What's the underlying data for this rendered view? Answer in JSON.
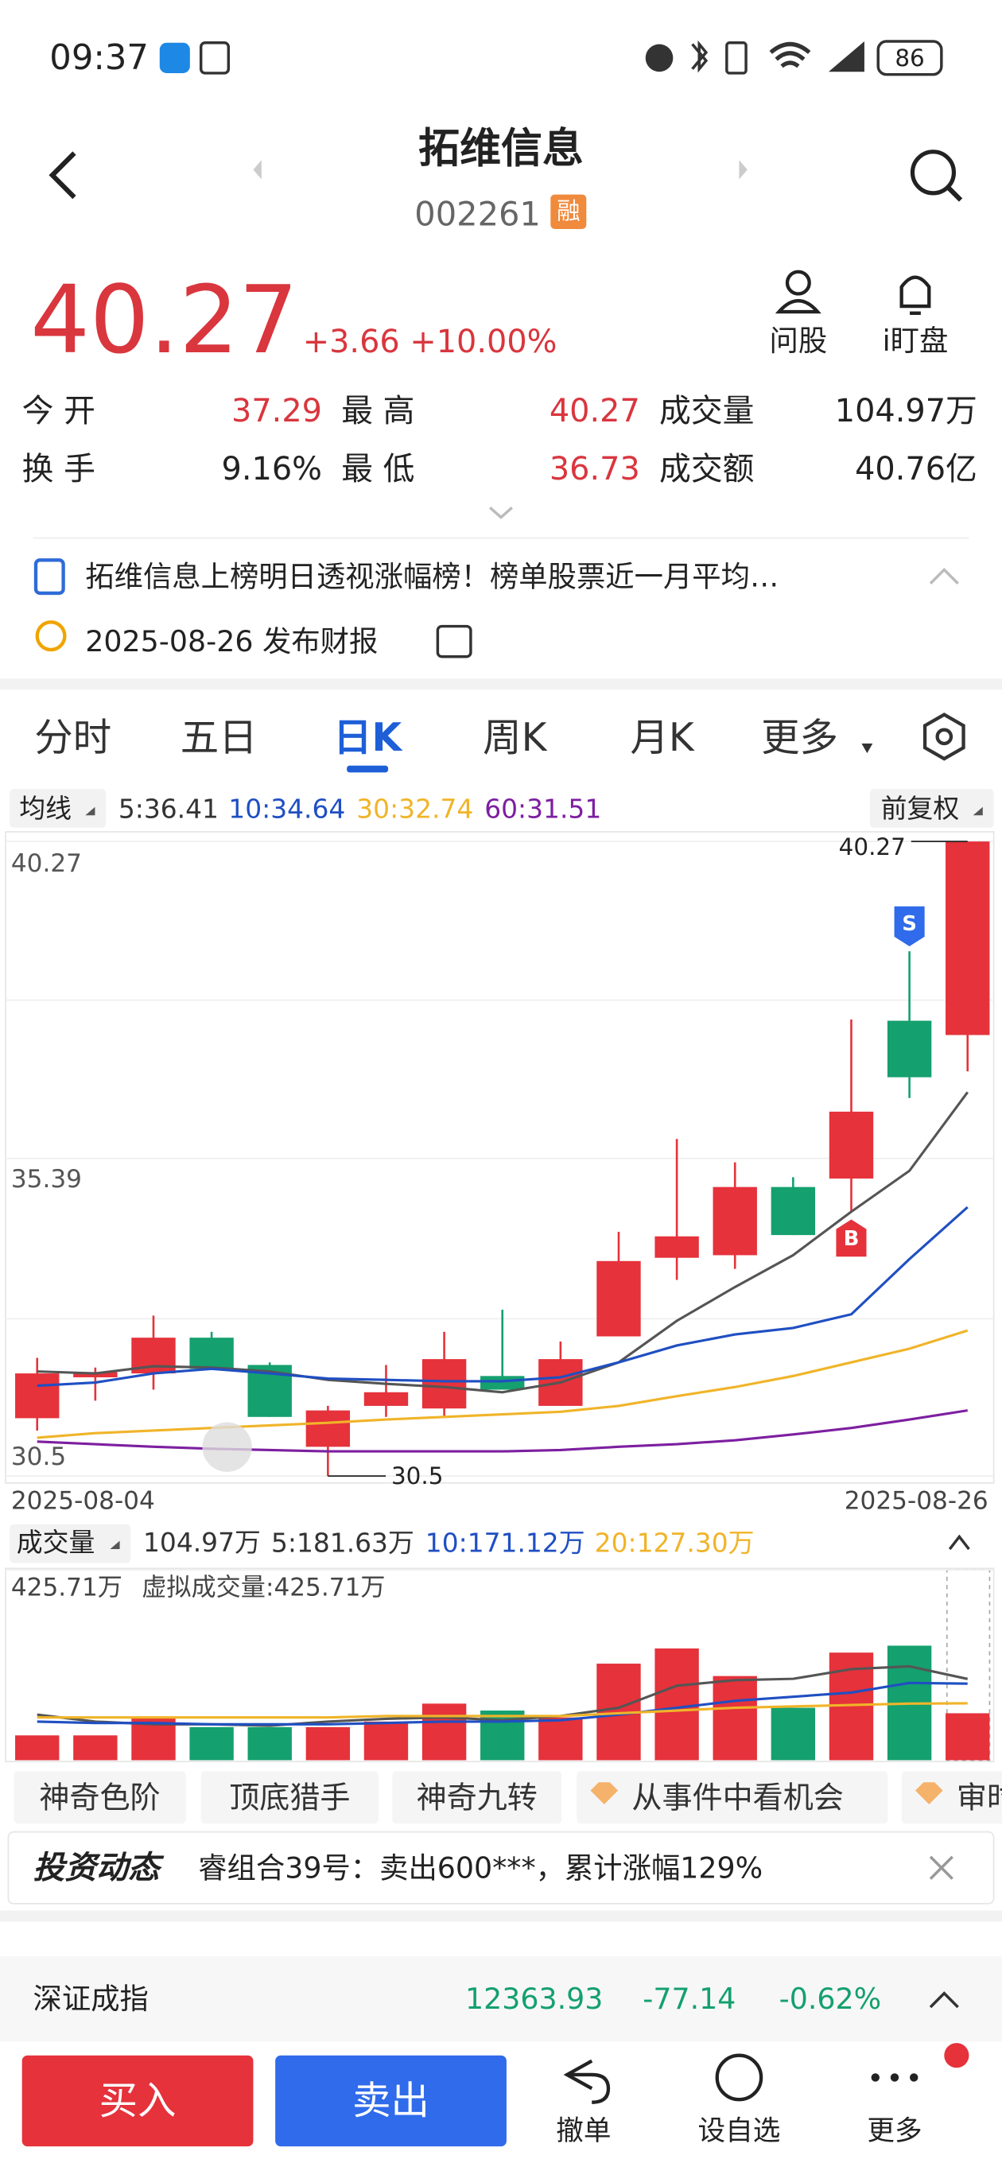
{
  "status_bar": {
    "time": "09:37",
    "battery": "86"
  },
  "header": {
    "title": "拓维信息",
    "code": "002261",
    "badge": "融"
  },
  "quote": {
    "price": "40.27",
    "change": "+3.66 +10.00%",
    "actions": [
      "问股",
      "i盯盘"
    ]
  },
  "stats": [
    [
      [
        "今 开",
        "37.29"
      ],
      [
        "最 高",
        "40.27"
      ],
      [
        "成交量",
        "104.97万"
      ]
    ],
    [
      [
        "换 手",
        "9.16%"
      ],
      [
        "最 低",
        "36.73"
      ],
      [
        "成交额",
        "40.76亿"
      ]
    ]
  ],
  "news": {
    "headline": "拓维信息上榜明日透视涨幅榜！榜单股票近一月平均…",
    "event": "2025-08-26 发布财报"
  },
  "tabs": [
    "分时",
    "五日",
    "日K",
    "周K",
    "月K",
    "更多"
  ],
  "chart_data": [
    {
      "type": "candlestick",
      "ma_button": "均线",
      "adjust_button": "前复权",
      "categories": [
        "2025-08-04",
        null,
        null,
        null,
        null,
        null,
        null,
        null,
        null,
        null,
        null,
        null,
        null,
        null,
        null,
        null,
        "2025-08-26"
      ],
      "candles": {
        "open": [
          31.39,
          32.02,
          32.08,
          32.63,
          32.21,
          30.95,
          31.58,
          31.54,
          32.04,
          31.58,
          32.65,
          33.86,
          33.9,
          34.95,
          35.08,
          37.51,
          37.29
        ],
        "high": [
          32.32,
          32.17,
          32.97,
          32.72,
          32.25,
          31.58,
          32.21,
          32.72,
          33.06,
          32.57,
          34.26,
          35.69,
          35.33,
          35.1,
          37.53,
          38.58,
          40.27
        ],
        "low": [
          31.2,
          31.66,
          31.83,
          32.15,
          31.41,
          30.5,
          31.41,
          31.41,
          31.83,
          31.58,
          32.65,
          33.52,
          33.69,
          34.21,
          34.57,
          36.32,
          36.73
        ],
        "close": [
          32.08,
          32.1,
          32.63,
          32.15,
          31.41,
          31.51,
          31.79,
          32.3,
          31.83,
          32.3,
          33.81,
          34.19,
          34.95,
          34.21,
          36.11,
          36.64,
          40.27
        ]
      },
      "up_color": "#e5323b",
      "down_color": "#14a06f",
      "series": [
        {
          "name": "5:",
          "color": "#555555",
          "values": [
            32.11,
            32.08,
            32.19,
            32.17,
            32.11,
            31.98,
            31.92,
            31.87,
            31.79,
            31.94,
            32.25,
            32.89,
            33.41,
            33.9,
            34.57,
            35.2,
            36.41
          ]
        },
        {
          "name": "10:",
          "color": "#1f4fc2",
          "values": [
            31.89,
            31.94,
            32.08,
            32.15,
            32.08,
            32.0,
            31.98,
            31.96,
            31.96,
            32.02,
            32.25,
            32.51,
            32.68,
            32.78,
            32.99,
            33.84,
            34.64
          ]
        },
        {
          "name": "30:",
          "color": "#f0b429",
          "values": [
            31.09,
            31.16,
            31.2,
            31.24,
            31.28,
            31.32,
            31.37,
            31.41,
            31.45,
            31.49,
            31.58,
            31.73,
            31.87,
            32.04,
            32.25,
            32.46,
            32.74
          ]
        },
        {
          "name": "60:",
          "color": "#7d1fa0",
          "values": [
            31.03,
            30.99,
            30.95,
            30.92,
            30.9,
            30.88,
            30.88,
            30.88,
            30.88,
            30.9,
            30.95,
            30.99,
            31.05,
            31.14,
            31.24,
            31.37,
            31.51
          ]
        }
      ],
      "ylim": [
        30.5,
        40.27
      ],
      "yticks": [
        40.27,
        35.39,
        30.5
      ],
      "annotations": {
        "sell": "S",
        "buy": "B"
      }
    },
    {
      "type": "bar",
      "title": "成交量",
      "annotation": "虚拟成交量:425.71万",
      "values": [
        55.5,
        55.5,
        95.6,
        74.0,
        74.0,
        74.0,
        86.4,
        126.5,
        111.0,
        95.6,
        215.9,
        249.9,
        188.2,
        117.2,
        240.6,
        256.1,
        104.97
      ],
      "value_labels": [
        null,
        null,
        null,
        null,
        null,
        null,
        null,
        null,
        null,
        null,
        null,
        null,
        null,
        null,
        null,
        null,
        "104.97万"
      ],
      "colors": [
        "#e5323b",
        "#e5323b",
        "#e5323b",
        "#14a06f",
        "#14a06f",
        "#e5323b",
        "#e5323b",
        "#e5323b",
        "#14a06f",
        "#e5323b",
        "#e5323b",
        "#e5323b",
        "#e5323b",
        "#14a06f",
        "#e5323b",
        "#14a06f",
        "#e5323b"
      ],
      "series": [
        {
          "name": "5:",
          "color": "#555555",
          "values": [
            101.8,
            86.4,
            80.2,
            80.2,
            77.1,
            86.4,
            92.6,
            95.6,
            89.5,
            98.7,
            117.2,
            166.6,
            178.9,
            182.0,
            203.6,
            209.8,
            181.63
          ],
          "value_labels": [
            null,
            null,
            null,
            null,
            null,
            null,
            null,
            null,
            null,
            null,
            null,
            null,
            null,
            null,
            null,
            null,
            "181.63万"
          ]
        },
        {
          "name": "10:",
          "color": "#1f4fc2",
          "values": [
            86.4,
            83.3,
            83.3,
            80.2,
            80.2,
            80.2,
            83.3,
            86.4,
            86.4,
            89.5,
            101.8,
            117.2,
            132.7,
            141.9,
            151.2,
            172.8,
            171.12
          ],
          "value_labels": [
            null,
            null,
            null,
            null,
            null,
            null,
            null,
            null,
            null,
            null,
            null,
            null,
            null,
            null,
            null,
            null,
            "171.12万"
          ]
        },
        {
          "name": "20:",
          "color": "#f0b429",
          "values": [
            95.6,
            95.6,
            95.6,
            95.6,
            95.6,
            95.6,
            98.7,
            98.7,
            98.7,
            98.7,
            104.9,
            111.0,
            117.2,
            120.3,
            123.4,
            126.5,
            127.3
          ],
          "value_labels": [
            null,
            null,
            null,
            null,
            null,
            null,
            null,
            null,
            null,
            null,
            null,
            null,
            null,
            null,
            null,
            null,
            "127.30万"
          ]
        }
      ],
      "ylim": [
        0,
        425.71
      ],
      "yticks": [
        {
          "value": 425.71,
          "label": "425.71万"
        }
      ]
    }
  ],
  "tools": [
    "神奇色阶",
    "顶底猎手",
    "神奇九转",
    "从事件中看机会",
    "审时"
  ],
  "banner": {
    "title": "投资动态",
    "text": "睿组合39号：卖出600***，累计涨幅129%"
  },
  "index_bar": {
    "name": "深证成指",
    "value": "12363.93",
    "change": "-77.14",
    "percent": "-0.62%"
  },
  "bottom": {
    "buy": "买入",
    "sell": "卖出",
    "actions": [
      "撤单",
      "设自选",
      "更多"
    ]
  }
}
